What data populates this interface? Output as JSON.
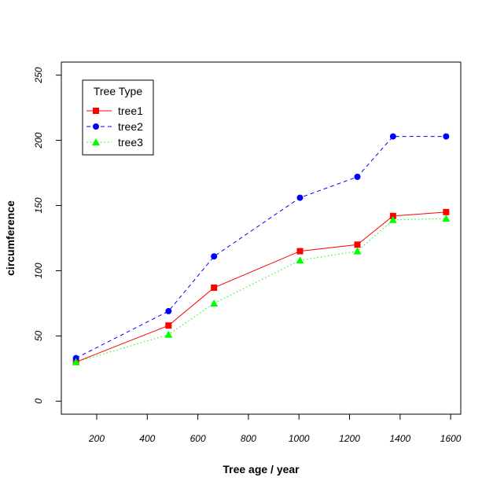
{
  "chart_data": {
    "type": "line",
    "title": "",
    "xlabel": "Tree age / year",
    "ylabel": "circumference",
    "xlim": [
      60,
      1640
    ],
    "ylim": [
      -10,
      260
    ],
    "xticks": [
      200,
      400,
      600,
      800,
      1000,
      1200,
      1400,
      1600
    ],
    "yticks": [
      0,
      50,
      100,
      150,
      200,
      250
    ],
    "x": [
      118,
      484,
      664,
      1004,
      1231,
      1372,
      1582
    ],
    "grid": false,
    "legend": {
      "title": "Tree Type",
      "position": "top-left"
    },
    "series": [
      {
        "name": "tree1",
        "color": "#ff0000",
        "marker": "square",
        "line": "solid",
        "values": [
          30,
          58,
          87,
          115,
          120,
          142,
          145
        ]
      },
      {
        "name": "tree2",
        "color": "#0000ff",
        "marker": "circle",
        "line": "dashed",
        "values": [
          33,
          69,
          111,
          156,
          172,
          203,
          203
        ]
      },
      {
        "name": "tree3",
        "color": "#00ff00",
        "marker": "triangle",
        "line": "dotted",
        "values": [
          30,
          51,
          75,
          108,
          115,
          139,
          140
        ]
      }
    ]
  }
}
